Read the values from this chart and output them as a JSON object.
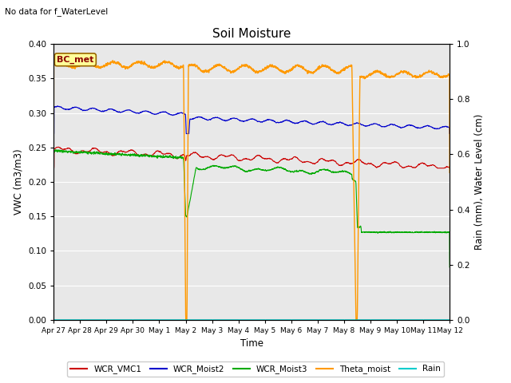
{
  "title": "Soil Moisture",
  "top_left_text": "No data for f_WaterLevel",
  "annotation_text": "BC_met",
  "xlabel": "Time",
  "ylabel_left": "VWC (m3/m3)",
  "ylabel_right": "Rain (mm), Water Level (cm)",
  "ylim_left": [
    0.0,
    0.4
  ],
  "ylim_right": [
    0.0,
    1.0
  ],
  "yticks_left": [
    0.0,
    0.05,
    0.1,
    0.15,
    0.2,
    0.25,
    0.3,
    0.35,
    0.4
  ],
  "yticks_right": [
    0.0,
    0.2,
    0.4,
    0.6,
    0.8,
    1.0
  ],
  "xtick_labels": [
    "Apr 27",
    "Apr 28",
    "Apr 29",
    "Apr 30",
    "May 1",
    "May 2",
    "May 3",
    "May 4",
    "May 5",
    "May 6",
    "May 7",
    "May 8",
    "May 9",
    "May 10",
    "May 11",
    "May 12"
  ],
  "background_color": "#e8e8e8",
  "figure_background": "#ffffff",
  "legend_items": [
    {
      "label": "WCR_VMC1",
      "color": "#cc0000"
    },
    {
      "label": "WCR_Moist2",
      "color": "#0000cc"
    },
    {
      "label": "WCR_Moist3",
      "color": "#00aa00"
    },
    {
      "label": "Theta_moist",
      "color": "#ff9900"
    },
    {
      "label": "Rain",
      "color": "#00cccc"
    }
  ],
  "annotation_box_color": "#ffff99",
  "annotation_box_edge": "#996600"
}
